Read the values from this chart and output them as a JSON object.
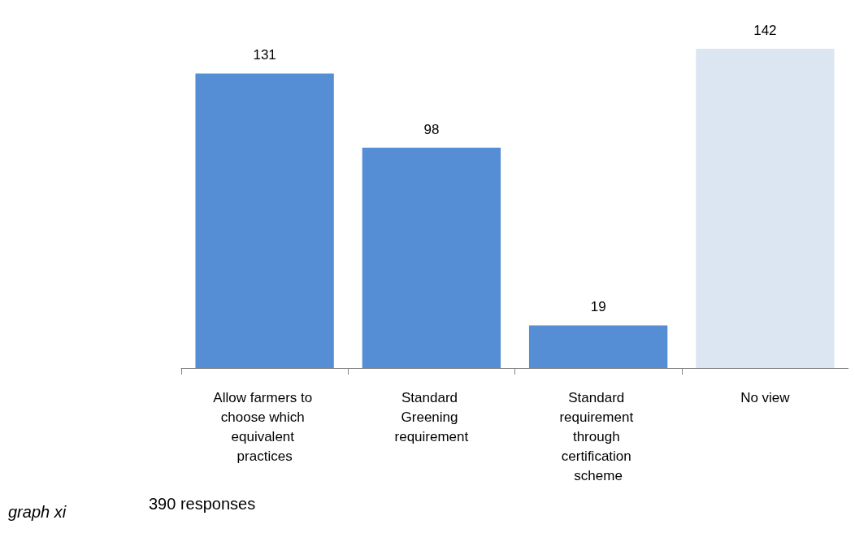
{
  "chart_data": {
    "type": "bar",
    "categories": [
      "Allow farmers to choose which equivalent practices",
      "Standard Greening requirement",
      "Standard requirement through certification scheme",
      "No view"
    ],
    "values": [
      131,
      98,
      19,
      142
    ],
    "colors": [
      "#558ed5",
      "#558ed5",
      "#558ed5",
      "#dce6f2"
    ],
    "data_labels": true,
    "annotations": [
      "graph xi",
      "390 responses"
    ]
  }
}
